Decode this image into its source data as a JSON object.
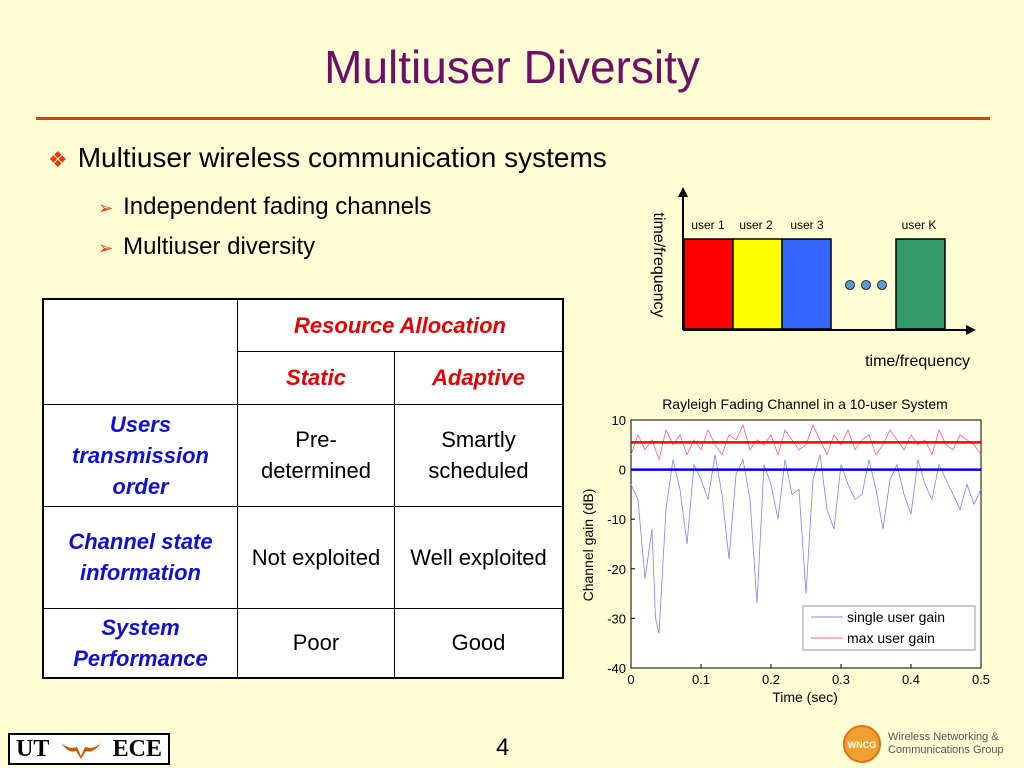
{
  "title": "Multiuser Diversity",
  "bullets": {
    "main": "Multiuser wireless communication systems",
    "sub1": "Independent fading channels",
    "sub2": "Multiuser diversity"
  },
  "colors": {
    "title": "#6b1166",
    "accent_rule": "#e8380d",
    "header_text": "#e00000",
    "row_label_text": "#1010d0"
  },
  "table": {
    "header_group": "Resource Allocation",
    "col_static": "Static",
    "col_adaptive": "Adaptive",
    "rows": [
      {
        "label": "Users transmission order",
        "static": "Pre-determined",
        "adaptive": "Smartly scheduled"
      },
      {
        "label": "Channel state information",
        "static": "Not exploited",
        "adaptive": "Well exploited"
      },
      {
        "label": "System Performance",
        "static": "Poor",
        "adaptive": "Good"
      }
    ]
  },
  "diagram": {
    "y_axis_label": "time/frequency",
    "x_axis_label": "time/frequency",
    "users": [
      {
        "label": "user 1",
        "color": "#ff0000"
      },
      {
        "label": "user 2",
        "color": "#ffff00"
      },
      {
        "label": "user 3",
        "color": "#3366ff"
      },
      {
        "label": "user K",
        "color": "#339966"
      }
    ],
    "ellipsis_dot_color": "#5b9bd5"
  },
  "chart_data": {
    "type": "line",
    "title": "Rayleigh Fading Channel in a 10-user System",
    "xlabel": "Time (sec)",
    "ylabel": "Channel gain (dB)",
    "xlim": [
      0,
      0.5
    ],
    "ylim": [
      -40,
      10
    ],
    "xticks": [
      "0",
      "0.1",
      "0.2",
      "0.3",
      "0.4",
      "0.5"
    ],
    "yticks": [
      "10",
      "0",
      "-10",
      "-20",
      "-30",
      "-40"
    ],
    "legend_position": "bottom-right",
    "series": [
      {
        "name": "single user gain",
        "color": "#8080ff",
        "x": [
          0,
          0.01,
          0.02,
          0.03,
          0.035,
          0.04,
          0.05,
          0.06,
          0.07,
          0.08,
          0.09,
          0.1,
          0.11,
          0.12,
          0.13,
          0.14,
          0.15,
          0.16,
          0.17,
          0.18,
          0.19,
          0.2,
          0.21,
          0.22,
          0.23,
          0.24,
          0.25,
          0.26,
          0.27,
          0.28,
          0.29,
          0.3,
          0.31,
          0.32,
          0.33,
          0.34,
          0.35,
          0.36,
          0.37,
          0.38,
          0.39,
          0.4,
          0.41,
          0.42,
          0.43,
          0.44,
          0.45,
          0.46,
          0.47,
          0.48,
          0.49,
          0.5
        ],
        "y": [
          -3,
          -6,
          -22,
          -12,
          -30,
          -33,
          -8,
          2,
          -4,
          -15,
          1,
          -2,
          -6,
          3,
          -5,
          -18,
          -1,
          2,
          -6,
          -27,
          1,
          -3,
          -10,
          2,
          -5,
          -4,
          -25,
          -2,
          3,
          -8,
          -12,
          1,
          -3,
          -6,
          -5,
          2,
          -4,
          -12,
          -2,
          1,
          -5,
          -9,
          2,
          -3,
          -6,
          1,
          -2,
          -5,
          -8,
          -3,
          -7,
          -4
        ]
      },
      {
        "name": "max user gain",
        "color": "#ff6080",
        "x": [
          0,
          0.01,
          0.02,
          0.03,
          0.04,
          0.05,
          0.06,
          0.07,
          0.08,
          0.09,
          0.1,
          0.11,
          0.12,
          0.13,
          0.14,
          0.15,
          0.16,
          0.17,
          0.18,
          0.19,
          0.2,
          0.21,
          0.22,
          0.23,
          0.24,
          0.25,
          0.26,
          0.27,
          0.28,
          0.29,
          0.3,
          0.31,
          0.32,
          0.33,
          0.34,
          0.35,
          0.36,
          0.37,
          0.38,
          0.39,
          0.4,
          0.41,
          0.42,
          0.43,
          0.44,
          0.45,
          0.46,
          0.47,
          0.48,
          0.49,
          0.5
        ],
        "y": [
          3,
          7,
          4,
          6,
          2,
          8,
          5,
          7,
          3,
          6,
          4,
          8,
          5,
          3,
          7,
          6,
          9,
          4,
          6,
          5,
          7,
          3,
          8,
          6,
          4,
          5,
          9,
          6,
          3,
          7,
          5,
          8,
          4,
          6,
          7,
          3,
          5,
          8,
          6,
          4,
          7,
          5,
          6,
          3,
          8,
          5,
          4,
          7,
          6,
          5,
          3
        ]
      }
    ],
    "reference_lines": [
      {
        "y": 5.5,
        "color": "#ff0000"
      },
      {
        "y": 0,
        "color": "#0000ff"
      }
    ]
  },
  "footer": {
    "page_number": "4",
    "logo_left": "UT",
    "logo_right": "ECE",
    "logo_badge": "WNCG",
    "group_line1": "Wireless Networking &",
    "group_line2": "Communications Group"
  }
}
